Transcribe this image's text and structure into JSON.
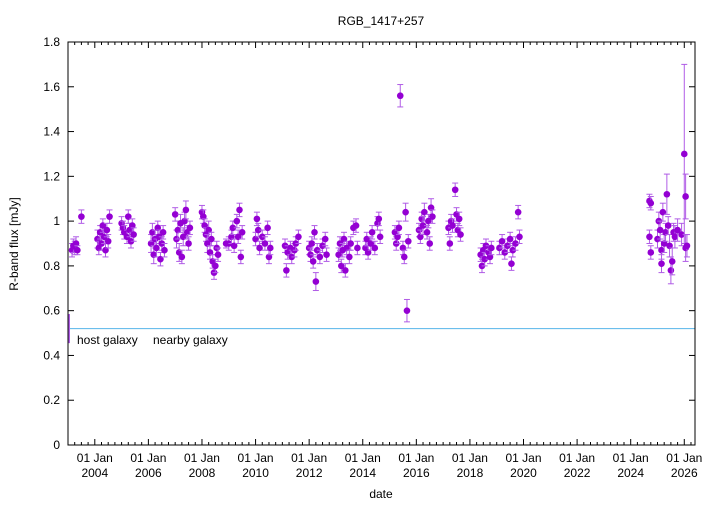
{
  "chart_data": {
    "type": "scatter",
    "title": "RGB_1417+257",
    "xlabel": "date",
    "ylabel": "R-band flux [mJy]",
    "xlim": [
      2003.0,
      2026.4
    ],
    "ylim": [
      0,
      1.8
    ],
    "yticks": [
      0,
      0.2,
      0.4,
      0.6,
      0.8,
      1,
      1.2,
      1.4,
      1.6,
      1.8
    ],
    "xticks": [
      {
        "year": 2004,
        "top": "01 Jan",
        "bottom": "2004"
      },
      {
        "year": 2006,
        "top": "01 Jan",
        "bottom": "2006"
      },
      {
        "year": 2008,
        "top": "01 Jan",
        "bottom": "2008"
      },
      {
        "year": 2010,
        "top": "01 Jan",
        "bottom": "2010"
      },
      {
        "year": 2012,
        "top": "01 Jan",
        "bottom": "2012"
      },
      {
        "year": 2014,
        "top": "01 Jan",
        "bottom": "2014"
      },
      {
        "year": 2016,
        "top": "01 Jan",
        "bottom": "2016"
      },
      {
        "year": 2018,
        "top": "01 Jan",
        "bottom": "2018"
      },
      {
        "year": 2020,
        "top": "01 Jan",
        "bottom": "2020"
      },
      {
        "year": 2022,
        "top": "01 Jan",
        "bottom": "2022"
      },
      {
        "year": 2024,
        "top": "01 Jan",
        "bottom": "2024"
      },
      {
        "year": 2026,
        "top": "01 Jan",
        "bottom": "2026"
      }
    ],
    "host_galaxy_level": 0.52,
    "host_galaxy_errorbar": {
      "x": 2003.0,
      "y": 0.52,
      "err": 0.065
    },
    "annotations": [
      "host galaxy",
      "nearby galaxy"
    ],
    "colors": {
      "points": "#9400d3",
      "errorbars": "#b05ce6",
      "host_line": "#56b4e9"
    },
    "series": [
      {
        "name": "R-band flux",
        "points": [
          [
            2003.15,
            0.87,
            0.03
          ],
          [
            2003.2,
            0.89,
            0.03
          ],
          [
            2003.25,
            0.88,
            0.03
          ],
          [
            2003.3,
            0.9,
            0.03
          ],
          [
            2003.35,
            0.87,
            0.02
          ],
          [
            2003.5,
            1.02,
            0.03
          ],
          [
            2004.1,
            0.92,
            0.04
          ],
          [
            2004.15,
            0.88,
            0.03
          ],
          [
            2004.2,
            0.95,
            0.03
          ],
          [
            2004.25,
            0.9,
            0.03
          ],
          [
            2004.3,
            0.98,
            0.03
          ],
          [
            2004.35,
            0.93,
            0.03
          ],
          [
            2004.4,
            0.87,
            0.03
          ],
          [
            2004.45,
            0.96,
            0.03
          ],
          [
            2004.55,
            1.02,
            0.03
          ],
          [
            2004.5,
            0.91,
            0.03
          ],
          [
            2005.0,
            0.99,
            0.03
          ],
          [
            2005.05,
            0.97,
            0.03
          ],
          [
            2005.1,
            0.95,
            0.03
          ],
          [
            2005.2,
            0.93,
            0.03
          ],
          [
            2005.25,
            1.02,
            0.03
          ],
          [
            2005.3,
            0.96,
            0.03
          ],
          [
            2005.35,
            0.91,
            0.03
          ],
          [
            2005.4,
            0.98,
            0.03
          ],
          [
            2005.45,
            0.94,
            0.03
          ],
          [
            2006.1,
            0.9,
            0.04
          ],
          [
            2006.15,
            0.95,
            0.04
          ],
          [
            2006.2,
            0.85,
            0.04
          ],
          [
            2006.25,
            0.92,
            0.04
          ],
          [
            2006.3,
            0.88,
            0.04
          ],
          [
            2006.35,
            0.97,
            0.03
          ],
          [
            2006.4,
            0.93,
            0.03
          ],
          [
            2006.45,
            0.83,
            0.03
          ],
          [
            2006.5,
            0.9,
            0.03
          ],
          [
            2006.55,
            0.95,
            0.03
          ],
          [
            2006.6,
            0.87,
            0.03
          ],
          [
            2007.0,
            1.03,
            0.03
          ],
          [
            2007.05,
            0.92,
            0.04
          ],
          [
            2007.1,
            0.96,
            0.04
          ],
          [
            2007.15,
            0.86,
            0.04
          ],
          [
            2007.2,
            0.99,
            0.04
          ],
          [
            2007.25,
            0.84,
            0.03
          ],
          [
            2007.3,
            0.93,
            0.04
          ],
          [
            2007.35,
            1.0,
            0.04
          ],
          [
            2007.4,
            1.05,
            0.04
          ],
          [
            2007.45,
            0.95,
            0.03
          ],
          [
            2007.5,
            0.9,
            0.03
          ],
          [
            2007.55,
            0.97,
            0.03
          ],
          [
            2008.0,
            1.04,
            0.03
          ],
          [
            2008.05,
            1.02,
            0.03
          ],
          [
            2008.1,
            0.98,
            0.03
          ],
          [
            2008.15,
            0.94,
            0.03
          ],
          [
            2008.2,
            0.9,
            0.04
          ],
          [
            2008.25,
            0.96,
            0.04
          ],
          [
            2008.3,
            0.86,
            0.03
          ],
          [
            2008.35,
            0.92,
            0.03
          ],
          [
            2008.4,
            0.82,
            0.03
          ],
          [
            2008.45,
            0.77,
            0.03
          ],
          [
            2008.5,
            0.8,
            0.03
          ],
          [
            2008.55,
            0.88,
            0.03
          ],
          [
            2008.6,
            0.85,
            0.03
          ],
          [
            2008.9,
            0.9,
            0.02
          ],
          [
            2009.0,
            0.9,
            0.03
          ],
          [
            2009.1,
            0.93,
            0.03
          ],
          [
            2009.15,
            0.97,
            0.03
          ],
          [
            2009.2,
            0.89,
            0.03
          ],
          [
            2009.3,
            1.0,
            0.03
          ],
          [
            2009.35,
            0.93,
            0.03
          ],
          [
            2009.4,
            1.05,
            0.03
          ],
          [
            2009.45,
            0.84,
            0.03
          ],
          [
            2009.5,
            0.95,
            0.03
          ],
          [
            2010.0,
            0.92,
            0.03
          ],
          [
            2010.05,
            1.01,
            0.03
          ],
          [
            2010.1,
            0.96,
            0.03
          ],
          [
            2010.15,
            0.88,
            0.03
          ],
          [
            2010.25,
            0.93,
            0.03
          ],
          [
            2010.35,
            0.9,
            0.03
          ],
          [
            2010.45,
            0.97,
            0.03
          ],
          [
            2010.5,
            0.84,
            0.03
          ],
          [
            2010.55,
            0.88,
            0.03
          ],
          [
            2011.1,
            0.89,
            0.03
          ],
          [
            2011.15,
            0.78,
            0.03
          ],
          [
            2011.2,
            0.86,
            0.03
          ],
          [
            2011.3,
            0.88,
            0.03
          ],
          [
            2011.35,
            0.84,
            0.03
          ],
          [
            2011.45,
            0.87,
            0.03
          ],
          [
            2011.5,
            0.9,
            0.03
          ],
          [
            2011.6,
            0.93,
            0.03
          ],
          [
            2012.0,
            0.88,
            0.03
          ],
          [
            2012.05,
            0.85,
            0.03
          ],
          [
            2012.1,
            0.9,
            0.03
          ],
          [
            2012.15,
            0.82,
            0.03
          ],
          [
            2012.2,
            0.95,
            0.03
          ],
          [
            2012.25,
            0.73,
            0.04
          ],
          [
            2012.3,
            0.87,
            0.03
          ],
          [
            2012.4,
            0.84,
            0.03
          ],
          [
            2012.5,
            0.89,
            0.03
          ],
          [
            2012.6,
            0.92,
            0.03
          ],
          [
            2012.65,
            0.85,
            0.03
          ],
          [
            2013.1,
            0.85,
            0.03
          ],
          [
            2013.15,
            0.9,
            0.03
          ],
          [
            2013.2,
            0.8,
            0.03
          ],
          [
            2013.25,
            0.87,
            0.03
          ],
          [
            2013.3,
            0.92,
            0.03
          ],
          [
            2013.35,
            0.78,
            0.03
          ],
          [
            2013.4,
            0.88,
            0.03
          ],
          [
            2013.5,
            0.84,
            0.03
          ],
          [
            2013.55,
            0.9,
            0.03
          ],
          [
            2013.65,
            0.97,
            0.03
          ],
          [
            2013.75,
            0.98,
            0.03
          ],
          [
            2013.8,
            0.88,
            0.03
          ],
          [
            2014.1,
            0.88,
            0.03
          ],
          [
            2014.15,
            0.92,
            0.03
          ],
          [
            2014.2,
            0.86,
            0.03
          ],
          [
            2014.3,
            0.9,
            0.03
          ],
          [
            2014.35,
            0.95,
            0.03
          ],
          [
            2014.45,
            0.88,
            0.03
          ],
          [
            2014.55,
            0.99,
            0.03
          ],
          [
            2014.6,
            1.01,
            0.03
          ],
          [
            2014.65,
            0.93,
            0.03
          ],
          [
            2015.2,
            0.95,
            0.03
          ],
          [
            2015.25,
            0.9,
            0.03
          ],
          [
            2015.3,
            0.93,
            0.03
          ],
          [
            2015.35,
            0.97,
            0.03
          ],
          [
            2015.4,
            1.56,
            0.05
          ],
          [
            2015.5,
            0.88,
            0.03
          ],
          [
            2015.55,
            0.84,
            0.03
          ],
          [
            2015.6,
            1.04,
            0.04
          ],
          [
            2015.65,
            0.6,
            0.05
          ],
          [
            2015.7,
            0.91,
            0.03
          ],
          [
            2016.1,
            0.96,
            0.03
          ],
          [
            2016.15,
            0.93,
            0.03
          ],
          [
            2016.2,
            1.01,
            0.03
          ],
          [
            2016.25,
            0.98,
            0.04
          ],
          [
            2016.3,
            1.04,
            0.04
          ],
          [
            2016.4,
            0.95,
            0.03
          ],
          [
            2016.45,
            1.0,
            0.03
          ],
          [
            2016.5,
            0.9,
            0.03
          ],
          [
            2016.55,
            1.06,
            0.04
          ],
          [
            2016.6,
            1.02,
            0.03
          ],
          [
            2017.2,
            0.97,
            0.03
          ],
          [
            2017.25,
            0.9,
            0.03
          ],
          [
            2017.3,
            1.0,
            0.03
          ],
          [
            2017.35,
            0.98,
            0.03
          ],
          [
            2017.45,
            1.14,
            0.03
          ],
          [
            2017.5,
            1.03,
            0.03
          ],
          [
            2017.55,
            0.96,
            0.03
          ],
          [
            2017.6,
            1.01,
            0.03
          ],
          [
            2017.65,
            0.94,
            0.03
          ],
          [
            2018.4,
            0.85,
            0.03
          ],
          [
            2018.45,
            0.8,
            0.03
          ],
          [
            2018.5,
            0.87,
            0.03
          ],
          [
            2018.55,
            0.83,
            0.03
          ],
          [
            2018.6,
            0.89,
            0.03
          ],
          [
            2018.7,
            0.86,
            0.03
          ],
          [
            2018.75,
            0.84,
            0.03
          ],
          [
            2018.8,
            0.88,
            0.03
          ],
          [
            2019.1,
            0.88,
            0.03
          ],
          [
            2019.2,
            0.91,
            0.03
          ],
          [
            2019.3,
            0.86,
            0.03
          ],
          [
            2019.4,
            0.89,
            0.03
          ],
          [
            2019.5,
            0.92,
            0.03
          ],
          [
            2019.55,
            0.81,
            0.03
          ],
          [
            2019.6,
            0.87,
            0.03
          ],
          [
            2019.7,
            0.9,
            0.03
          ],
          [
            2019.8,
            1.04,
            0.03
          ],
          [
            2019.85,
            0.93,
            0.03
          ],
          [
            2024.7,
            1.09,
            0.03
          ],
          [
            2024.75,
            1.08,
            0.03
          ],
          [
            2024.7,
            0.93,
            0.03
          ],
          [
            2024.75,
            0.86,
            0.03
          ],
          [
            2025.0,
            0.92,
            0.04
          ],
          [
            2025.05,
            1.0,
            0.04
          ],
          [
            2025.1,
            0.96,
            0.04
          ],
          [
            2025.15,
            0.87,
            0.04
          ],
          [
            2025.15,
            0.81,
            0.04
          ],
          [
            2025.2,
            1.04,
            0.04
          ],
          [
            2025.25,
            0.9,
            0.04
          ],
          [
            2025.3,
            0.95,
            0.04
          ],
          [
            2025.35,
            1.12,
            0.09
          ],
          [
            2025.4,
            0.98,
            0.04
          ],
          [
            2025.45,
            0.89,
            0.05
          ],
          [
            2025.5,
            0.78,
            0.06
          ],
          [
            2025.55,
            0.82,
            0.06
          ],
          [
            2025.6,
            0.95,
            0.04
          ],
          [
            2025.65,
            0.93,
            0.05
          ],
          [
            2025.75,
            0.96,
            0.05
          ],
          [
            2025.9,
            0.94,
            0.05
          ],
          [
            2026.0,
            1.3,
            0.4
          ],
          [
            2026.05,
            1.11,
            0.1
          ],
          [
            2026.05,
            0.88,
            0.06
          ],
          [
            2026.1,
            0.89,
            0.05
          ]
        ]
      }
    ]
  }
}
